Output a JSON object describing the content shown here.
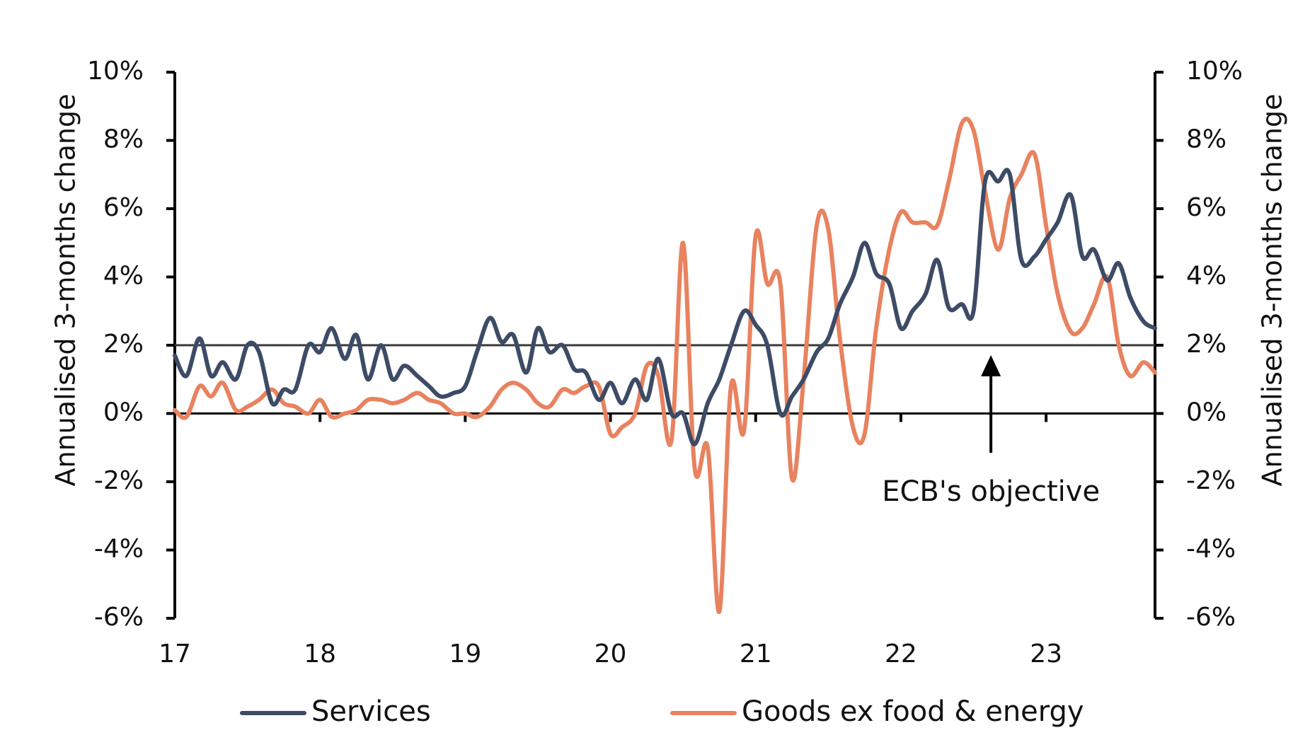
{
  "chart_data": {
    "type": "line",
    "title": "",
    "xlabel": "",
    "ylabel": "Annualised 3-months change",
    "ylabel_right": "Annualised 3-months change",
    "ylim": [
      -6,
      10
    ],
    "xlim": [
      2017,
      2023.75
    ],
    "y_ticks": [
      "10%",
      "8%",
      "6%",
      "4%",
      "2%",
      "0%",
      "-2%",
      "-4%",
      "-6%"
    ],
    "x_ticks": [
      "17",
      "18",
      "19",
      "20",
      "21",
      "22",
      "23"
    ],
    "grid": false,
    "legend_position": "bottom",
    "reference_line": {
      "value": 2,
      "label": "ECB's objective"
    },
    "colors": {
      "services": "#3d4b66",
      "goods": "#e8825f",
      "axis": "#000000",
      "reference": "#3a3a3a"
    },
    "series": [
      {
        "name": "Services",
        "key": "services",
        "x": [
          2017.0,
          2017.08,
          2017.17,
          2017.25,
          2017.33,
          2017.42,
          2017.5,
          2017.58,
          2017.67,
          2017.75,
          2017.83,
          2017.92,
          2018.0,
          2018.08,
          2018.17,
          2018.25,
          2018.33,
          2018.42,
          2018.5,
          2018.58,
          2018.67,
          2018.75,
          2018.83,
          2018.92,
          2019.0,
          2019.08,
          2019.17,
          2019.25,
          2019.33,
          2019.42,
          2019.5,
          2019.58,
          2019.67,
          2019.75,
          2019.83,
          2019.92,
          2020.0,
          2020.08,
          2020.17,
          2020.25,
          2020.33,
          2020.42,
          2020.5,
          2020.58,
          2020.67,
          2020.75,
          2020.83,
          2020.92,
          2021.0,
          2021.08,
          2021.17,
          2021.25,
          2021.33,
          2021.42,
          2021.5,
          2021.58,
          2021.67,
          2021.75,
          2021.83,
          2021.92,
          2022.0,
          2022.08,
          2022.17,
          2022.25,
          2022.33,
          2022.42,
          2022.5,
          2022.58,
          2022.67,
          2022.75,
          2022.83,
          2022.92,
          2023.0,
          2023.08,
          2023.17,
          2023.25,
          2023.33,
          2023.42,
          2023.5,
          2023.58,
          2023.67,
          2023.75
        ],
        "values": [
          1.7,
          1.1,
          2.2,
          1.1,
          1.5,
          1.0,
          2.0,
          1.8,
          0.3,
          0.7,
          0.7,
          2.0,
          1.8,
          2.5,
          1.6,
          2.3,
          1.0,
          2.0,
          1.0,
          1.4,
          1.1,
          0.8,
          0.5,
          0.6,
          0.8,
          1.8,
          2.8,
          2.1,
          2.3,
          1.2,
          2.5,
          1.8,
          2.0,
          1.3,
          1.2,
          0.4,
          0.9,
          0.3,
          1.0,
          0.4,
          1.6,
          0.0,
          0.0,
          -0.9,
          0.3,
          1.0,
          2.0,
          3.0,
          2.6,
          2.0,
          0.0,
          0.5,
          1.0,
          1.8,
          2.2,
          3.2,
          4.0,
          5.0,
          4.1,
          3.8,
          2.5,
          3.0,
          3.5,
          4.5,
          3.1,
          3.2,
          3.0,
          6.8,
          6.8,
          7.0,
          4.5,
          4.6,
          5.1,
          5.6,
          6.4,
          4.6,
          4.8,
          3.9,
          4.4,
          3.4,
          2.7,
          2.5
        ]
      },
      {
        "name": "Goods ex food & energy",
        "key": "goods",
        "x": [
          2017.0,
          2017.08,
          2017.17,
          2017.25,
          2017.33,
          2017.42,
          2017.5,
          2017.58,
          2017.67,
          2017.75,
          2017.83,
          2017.92,
          2018.0,
          2018.08,
          2018.17,
          2018.25,
          2018.33,
          2018.42,
          2018.5,
          2018.58,
          2018.67,
          2018.75,
          2018.83,
          2018.92,
          2019.0,
          2019.08,
          2019.17,
          2019.25,
          2019.33,
          2019.42,
          2019.5,
          2019.58,
          2019.67,
          2019.75,
          2019.83,
          2019.92,
          2020.0,
          2020.08,
          2020.17,
          2020.25,
          2020.33,
          2020.42,
          2020.5,
          2020.58,
          2020.67,
          2020.75,
          2020.83,
          2020.92,
          2021.0,
          2021.08,
          2021.17,
          2021.25,
          2021.33,
          2021.42,
          2021.5,
          2021.58,
          2021.67,
          2021.75,
          2021.83,
          2021.92,
          2022.0,
          2022.08,
          2022.17,
          2022.25,
          2022.33,
          2022.42,
          2022.5,
          2022.58,
          2022.67,
          2022.75,
          2022.83,
          2022.92,
          2023.0,
          2023.08,
          2023.17,
          2023.25,
          2023.33,
          2023.42,
          2023.5,
          2023.58,
          2023.67,
          2023.75
        ],
        "values": [
          0.1,
          -0.1,
          0.8,
          0.5,
          0.9,
          0.1,
          0.2,
          0.4,
          0.7,
          0.3,
          0.2,
          0.0,
          0.4,
          -0.1,
          0.0,
          0.1,
          0.4,
          0.4,
          0.3,
          0.4,
          0.6,
          0.4,
          0.3,
          0.0,
          0.0,
          -0.1,
          0.2,
          0.7,
          0.9,
          0.7,
          0.3,
          0.2,
          0.7,
          0.6,
          0.8,
          0.8,
          -0.6,
          -0.4,
          0.0,
          1.4,
          1.1,
          -0.8,
          5.0,
          -1.6,
          -1.0,
          -5.8,
          0.8,
          -0.5,
          5.2,
          3.8,
          3.8,
          -1.9,
          1.0,
          5.5,
          5.4,
          2.2,
          -0.4,
          -0.6,
          2.5,
          4.8,
          5.9,
          5.6,
          5.6,
          5.5,
          6.8,
          8.5,
          8.3,
          6.5,
          4.8,
          6.3,
          7.0,
          7.6,
          5.5,
          3.5,
          2.4,
          2.5,
          3.2,
          4.0,
          2.0,
          1.1,
          1.5,
          1.2
        ]
      }
    ]
  }
}
